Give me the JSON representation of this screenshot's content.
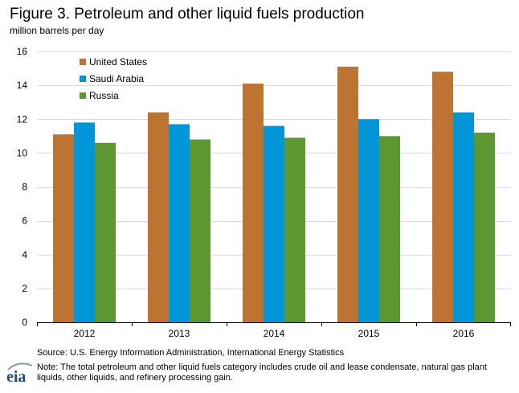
{
  "header": {
    "title": "Figure 3. Petroleum and other liquid fuels production",
    "subtitle": "million barrels per day"
  },
  "footer": {
    "source": "Source: U.S. Energy Information Administration, International Energy Statistics",
    "note": "Note: The total petroleum and other liquid fuels category includes crude oil and lease condensate, natural gas plant liquids, other liquids, and refinery processing gain."
  },
  "logo": {
    "text": "eia",
    "color": "#1f4e79",
    "swoosh_color": "#8c9aa8"
  },
  "chart_data": {
    "type": "bar",
    "title": "Figure 3. Petroleum and other liquid fuels production",
    "ylabel": "million barrels per day",
    "xlabel": "",
    "categories": [
      "2012",
      "2013",
      "2014",
      "2015",
      "2016"
    ],
    "series": [
      {
        "name": "United States",
        "color": "#bd7331",
        "values": [
          11.1,
          12.4,
          14.1,
          15.1,
          14.8
        ]
      },
      {
        "name": "Saudi Arabia",
        "color": "#0096d7",
        "values": [
          11.8,
          11.7,
          11.6,
          12.0,
          12.4
        ]
      },
      {
        "name": "Russia",
        "color": "#5d9732",
        "values": [
          10.6,
          10.8,
          10.9,
          11.0,
          11.2
        ]
      }
    ],
    "ylim": [
      0,
      16
    ],
    "yticks": [
      0,
      2,
      4,
      6,
      8,
      10,
      12,
      14,
      16
    ],
    "grid": true,
    "legend": "top-left",
    "gridColor": "#d9d9d9"
  }
}
